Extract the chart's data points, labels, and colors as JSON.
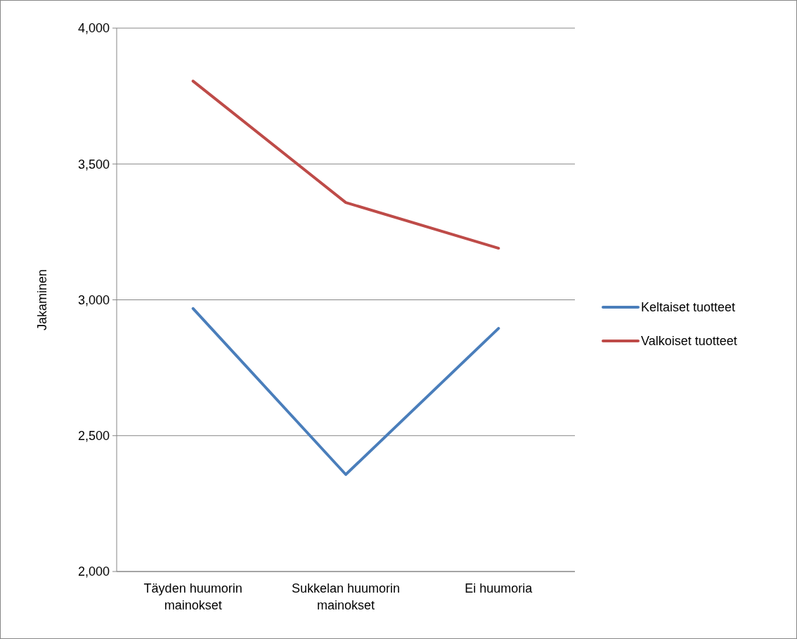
{
  "chart_data": {
    "type": "line",
    "ylabel": "Jakaminen",
    "categories": [
      "Täyden huumorin mainokset",
      "Sukkelan huumorin mainokset",
      "Ei huumoria"
    ],
    "series": [
      {
        "name": "Keltaiset tuotteet",
        "color": "#4a7ebb",
        "values": [
          2968,
          2357,
          2895
        ]
      },
      {
        "name": "Valkoiset tuotteet",
        "color": "#be4b48",
        "values": [
          3805,
          3358,
          3190
        ]
      }
    ],
    "ylim": [
      2000,
      4000
    ],
    "yticks": [
      {
        "value": 2000,
        "label": "2,000"
      },
      {
        "value": 2500,
        "label": "2,500"
      },
      {
        "value": 3000,
        "label": "3,000"
      },
      {
        "value": 3500,
        "label": "3,500"
      },
      {
        "value": 4000,
        "label": "4,000"
      }
    ],
    "grid": "y",
    "legend": "right",
    "marker": "none",
    "line_style": "solid"
  }
}
